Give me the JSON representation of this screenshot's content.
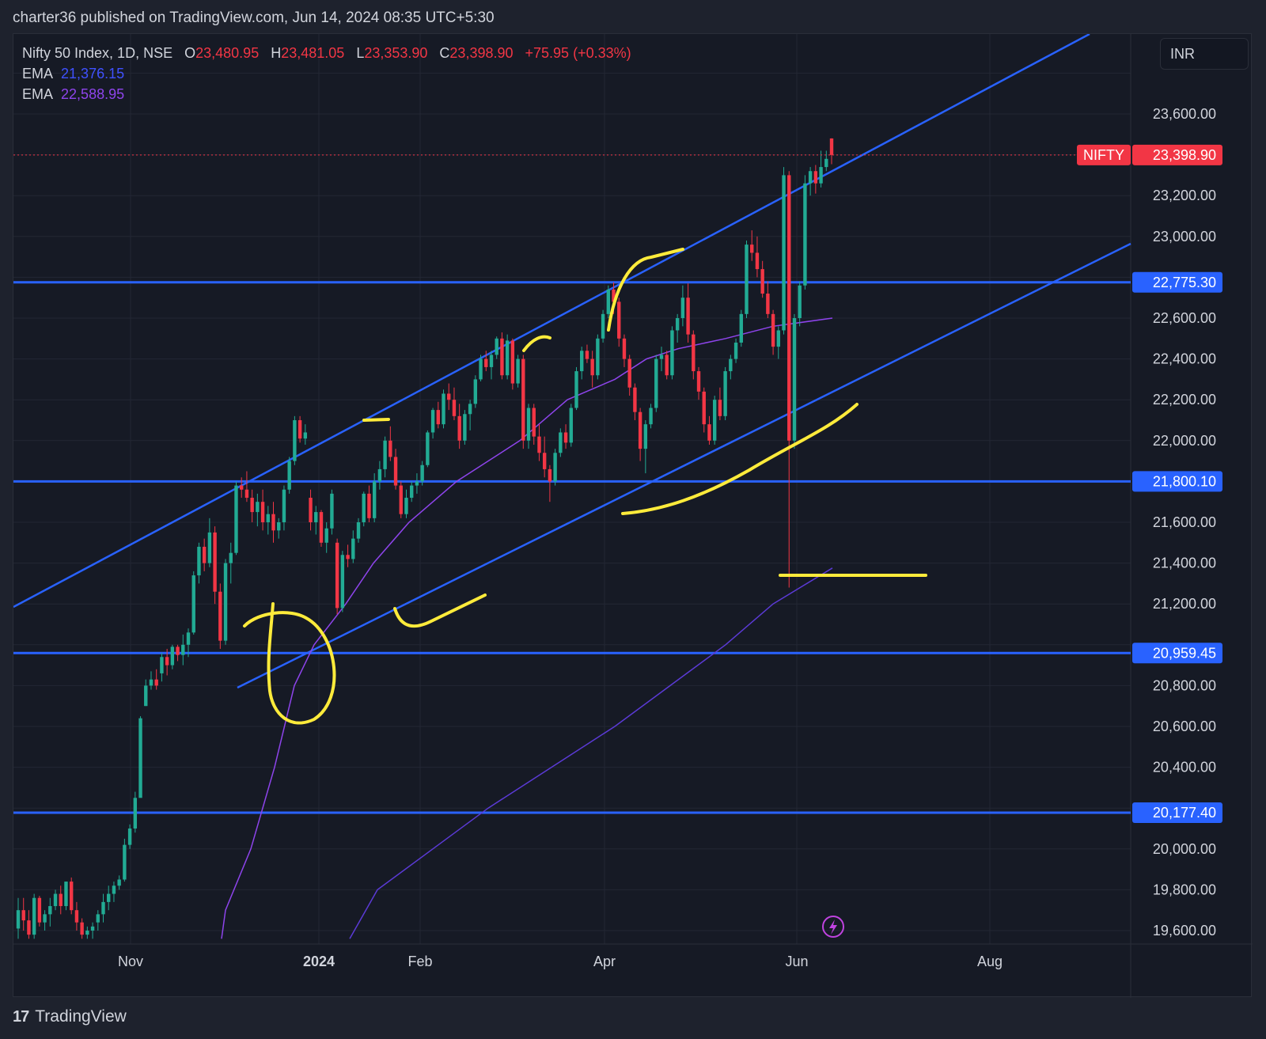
{
  "header": {
    "publisher": "charter36 published on TradingView.com, Jun 14, 2024 08:35 UTC+5:30"
  },
  "legend": {
    "symbol": "Nifty 50 Index, 1D, NSE",
    "open_label": "O",
    "open": "23,480.95",
    "high_label": "H",
    "high": "23,481.05",
    "low_label": "L",
    "low": "23,353.90",
    "close_label": "C",
    "close": "23,398.90",
    "change": "+75.95 (+0.33%)",
    "ema1_label": "EMA",
    "ema1_value": "21,376.15",
    "ema1_color": "#3f51ff",
    "ema2_label": "EMA",
    "ema2_value": "22,588.95",
    "ema2_color": "#8e44ec"
  },
  "currency": "INR",
  "footer": {
    "brand": "TradingView",
    "logo": "17"
  },
  "colors": {
    "up": "#22ab94",
    "down": "#f23645",
    "line": "#2962ff",
    "marker": "#ffeb3b",
    "ema_fast": "#8e44ec",
    "ema_slow": "#5b3ad6"
  },
  "chart_data": {
    "type": "candlestick",
    "price_axis": {
      "ylim": [
        19560,
        23880
      ],
      "ticks": [
        "19,600.00",
        "19,800.00",
        "20,000.00",
        "20,400.00",
        "20,600.00",
        "20,800.00",
        "21,200.00",
        "21,400.00",
        "21,600.00",
        "22,000.00",
        "22,200.00",
        "22,400.00",
        "22,600.00",
        "23,000.00",
        "23,200.00",
        "23,600.00"
      ]
    },
    "time_axis": {
      "labels": [
        "Nov",
        "2024",
        "Feb",
        "Apr",
        "Jun",
        "Aug"
      ]
    },
    "last_price": {
      "label": "NIFTY",
      "value": "23,398.90"
    },
    "horizontal_levels": [
      {
        "value": 22775.3,
        "label": "22,775.30"
      },
      {
        "value": 21800.1,
        "label": "21,800.10"
      },
      {
        "value": 20959.45,
        "label": "20,959.45"
      },
      {
        "value": 20177.4,
        "label": "20,177.40"
      }
    ],
    "candles_ohlc": [
      [
        19610,
        19760,
        19560,
        19700
      ],
      [
        19700,
        19760,
        19600,
        19650
      ],
      [
        19650,
        19700,
        19560,
        19580
      ],
      [
        19580,
        19780,
        19560,
        19760
      ],
      [
        19760,
        19770,
        19620,
        19640
      ],
      [
        19640,
        19700,
        19600,
        19680
      ],
      [
        19680,
        19760,
        19620,
        19720
      ],
      [
        19720,
        19800,
        19700,
        19780
      ],
      [
        19780,
        19820,
        19680,
        19720
      ],
      [
        19720,
        19840,
        19700,
        19840
      ],
      [
        19840,
        19860,
        19680,
        19700
      ],
      [
        19700,
        19740,
        19600,
        19640
      ],
      [
        19640,
        19660,
        19560,
        19580
      ],
      [
        19580,
        19620,
        19560,
        19600
      ],
      [
        19600,
        19640,
        19560,
        19620
      ],
      [
        19640,
        19700,
        19600,
        19680
      ],
      [
        19680,
        19780,
        19640,
        19740
      ],
      [
        19740,
        19820,
        19700,
        19780
      ],
      [
        19780,
        19840,
        19740,
        19820
      ],
      [
        19820,
        19870,
        19800,
        19850
      ],
      [
        19850,
        20050,
        19840,
        20020
      ],
      [
        20020,
        20120,
        20000,
        20100
      ],
      [
        20100,
        20280,
        20080,
        20250
      ],
      [
        20250,
        20650,
        20500,
        20640
      ],
      [
        20700,
        20830,
        20700,
        20800
      ],
      [
        20800,
        20870,
        20780,
        20830
      ],
      [
        20830,
        20880,
        20780,
        20800
      ],
      [
        20860,
        20960,
        20820,
        20940
      ],
      [
        20940,
        20980,
        20850,
        20900
      ],
      [
        20900,
        21000,
        20880,
        20990
      ],
      [
        20990,
        21000,
        20920,
        20950
      ],
      [
        20950,
        21050,
        20900,
        21000
      ],
      [
        21000,
        21080,
        20940,
        21060
      ],
      [
        21060,
        21360,
        21050,
        21340
      ],
      [
        21340,
        21500,
        21300,
        21480
      ],
      [
        21480,
        21520,
        21360,
        21400
      ],
      [
        21400,
        21620,
        21380,
        21550
      ],
      [
        21550,
        21580,
        21200,
        21260
      ],
      [
        21260,
        21300,
        20980,
        21020
      ],
      [
        21020,
        21420,
        21000,
        21400
      ],
      [
        21400,
        21500,
        21300,
        21450
      ],
      [
        21450,
        21800,
        21440,
        21780
      ],
      [
        21780,
        21820,
        21720,
        21760
      ],
      [
        21760,
        21850,
        21700,
        21720
      ],
      [
        21720,
        21760,
        21600,
        21650
      ],
      [
        21650,
        21740,
        21580,
        21700
      ],
      [
        21700,
        21760,
        21560,
        21600
      ],
      [
        21600,
        21680,
        21540,
        21640
      ],
      [
        21640,
        21700,
        21500,
        21560
      ],
      [
        21560,
        21620,
        21520,
        21600
      ],
      [
        21600,
        21780,
        21560,
        21760
      ],
      [
        21760,
        21920,
        21740,
        21900
      ],
      [
        21900,
        22120,
        21880,
        22100
      ],
      [
        22100,
        22120,
        21990,
        22010
      ],
      [
        22010,
        22080,
        21980,
        22040
      ],
      [
        21720,
        21760,
        21560,
        21600
      ],
      [
        21600,
        21680,
        21540,
        21650
      ],
      [
        21650,
        21660,
        21480,
        21500
      ],
      [
        21500,
        21600,
        21450,
        21570
      ],
      [
        21570,
        21760,
        21540,
        21740
      ],
      [
        21500,
        21520,
        21150,
        21180
      ],
      [
        21180,
        21460,
        21160,
        21440
      ],
      [
        21440,
        21490,
        21380,
        21420
      ],
      [
        21420,
        21560,
        21400,
        21520
      ],
      [
        21520,
        21620,
        21500,
        21600
      ],
      [
        21600,
        21750,
        21580,
        21740
      ],
      [
        21740,
        21780,
        21600,
        21620
      ],
      [
        21620,
        21840,
        21600,
        21800
      ],
      [
        21800,
        21900,
        21760,
        21860
      ],
      [
        21860,
        22020,
        21820,
        22000
      ],
      [
        22000,
        22070,
        21900,
        21920
      ],
      [
        21920,
        21960,
        21760,
        21780
      ],
      [
        21780,
        21800,
        21620,
        21640
      ],
      [
        21640,
        21760,
        21620,
        21720
      ],
      [
        21720,
        21800,
        21700,
        21780
      ],
      [
        21780,
        21840,
        21740,
        21800
      ],
      [
        21800,
        21900,
        21780,
        21880
      ],
      [
        21880,
        22050,
        21870,
        22040
      ],
      [
        22040,
        22160,
        22010,
        22150
      ],
      [
        22150,
        22190,
        22060,
        22080
      ],
      [
        22080,
        22250,
        22060,
        22230
      ],
      [
        22230,
        22280,
        22150,
        22200
      ],
      [
        22200,
        22260,
        22100,
        22120
      ],
      [
        22120,
        22180,
        21960,
        22000
      ],
      [
        22000,
        22150,
        21980,
        22130
      ],
      [
        22130,
        22200,
        22050,
        22180
      ],
      [
        22180,
        22320,
        22160,
        22300
      ],
      [
        22300,
        22420,
        22290,
        22400
      ],
      [
        22400,
        22440,
        22340,
        22360
      ],
      [
        22360,
        22440,
        22300,
        22420
      ],
      [
        22420,
        22510,
        22400,
        22500
      ],
      [
        22500,
        22530,
        22300,
        22320
      ],
      [
        22320,
        22520,
        22300,
        22490
      ],
      [
        22490,
        22500,
        22250,
        22280
      ],
      [
        22280,
        22420,
        22260,
        22400
      ],
      [
        22400,
        22420,
        21960,
        22000
      ],
      [
        22000,
        22180,
        21960,
        22160
      ],
      [
        22160,
        22180,
        21980,
        22020
      ],
      [
        22020,
        22080,
        21900,
        21940
      ],
      [
        21940,
        22020,
        21820,
        21860
      ],
      [
        21860,
        21880,
        21700,
        21800
      ],
      [
        21800,
        21960,
        21780,
        21940
      ],
      [
        21940,
        22060,
        21920,
        22040
      ],
      [
        22040,
        22080,
        21960,
        21990
      ],
      [
        21990,
        22180,
        21970,
        22160
      ],
      [
        22160,
        22360,
        22150,
        22340
      ],
      [
        22340,
        22460,
        22300,
        22440
      ],
      [
        22440,
        22470,
        22380,
        22400
      ],
      [
        22400,
        22440,
        22260,
        22320
      ],
      [
        22320,
        22520,
        22300,
        22500
      ],
      [
        22500,
        22640,
        22480,
        22620
      ],
      [
        22620,
        22760,
        22600,
        22740
      ],
      [
        22740,
        22775,
        22620,
        22680
      ],
      [
        22680,
        22700,
        22460,
        22500
      ],
      [
        22500,
        22520,
        22360,
        22400
      ],
      [
        22400,
        22420,
        22220,
        22260
      ],
      [
        22260,
        22280,
        22100,
        22140
      ],
      [
        22140,
        22160,
        21900,
        21960
      ],
      [
        21960,
        22100,
        21840,
        22080
      ],
      [
        22080,
        22180,
        22060,
        22160
      ],
      [
        22160,
        22420,
        22140,
        22400
      ],
      [
        22400,
        22460,
        22340,
        22420
      ],
      [
        22420,
        22440,
        22300,
        22320
      ],
      [
        22320,
        22560,
        22300,
        22540
      ],
      [
        22540,
        22620,
        22480,
        22600
      ],
      [
        22600,
        22760,
        22560,
        22700
      ],
      [
        22700,
        22770,
        22480,
        22520
      ],
      [
        22520,
        22540,
        22300,
        22340
      ],
      [
        22340,
        22360,
        22200,
        22240
      ],
      [
        22240,
        22260,
        22040,
        22080
      ],
      [
        22080,
        22120,
        21980,
        22000
      ],
      [
        22000,
        22220,
        21980,
        22200
      ],
      [
        22200,
        22260,
        22100,
        22120
      ],
      [
        22120,
        22360,
        22100,
        22340
      ],
      [
        22340,
        22420,
        22300,
        22400
      ],
      [
        22400,
        22500,
        22380,
        22480
      ],
      [
        22480,
        22640,
        22460,
        22620
      ],
      [
        22620,
        22980,
        22600,
        22960
      ],
      [
        22960,
        23030,
        22880,
        22920
      ],
      [
        22920,
        23000,
        22800,
        22840
      ],
      [
        22840,
        22880,
        22700,
        22720
      ],
      [
        22720,
        22780,
        22600,
        22620
      ],
      [
        22620,
        22640,
        22420,
        22460
      ],
      [
        22460,
        22560,
        22400,
        22540
      ],
      [
        22540,
        23340,
        22520,
        23300
      ],
      [
        23300,
        23320,
        21280,
        22000
      ],
      [
        22000,
        22620,
        21960,
        22600
      ],
      [
        22600,
        22780,
        22560,
        22760
      ],
      [
        22760,
        23300,
        22740,
        23260
      ],
      [
        23260,
        23340,
        23200,
        23320
      ],
      [
        23320,
        23350,
        23210,
        23260
      ],
      [
        23260,
        23420,
        23240,
        23340
      ],
      [
        23340,
        23420,
        23320,
        23380
      ],
      [
        23480,
        23481,
        23354,
        23399
      ]
    ],
    "ema_fast": [
      [
        19560,
        1190
      ],
      [
        19700,
        1160
      ],
      [
        20000,
        1060
      ],
      [
        20400,
        990
      ],
      [
        20800,
        900
      ],
      [
        21000,
        830
      ],
      [
        21200,
        790
      ],
      [
        21400,
        765
      ],
      [
        21600,
        720
      ],
      [
        21800,
        660
      ],
      [
        22000,
        595
      ],
      [
        22200,
        550
      ],
      [
        22300,
        520
      ],
      [
        22400,
        500
      ],
      [
        22450,
        480
      ],
      [
        22500,
        460
      ],
      [
        22560,
        440
      ],
      [
        22600,
        410
      ]
    ],
    "ema_slow": [
      [
        19560,
        1180
      ],
      [
        19800,
        1080
      ],
      [
        20000,
        990
      ],
      [
        20200,
        920
      ],
      [
        20400,
        860
      ],
      [
        20600,
        820
      ],
      [
        20800,
        790
      ],
      [
        21000,
        770
      ],
      [
        21200,
        755
      ],
      [
        21376,
        720
      ]
    ]
  }
}
